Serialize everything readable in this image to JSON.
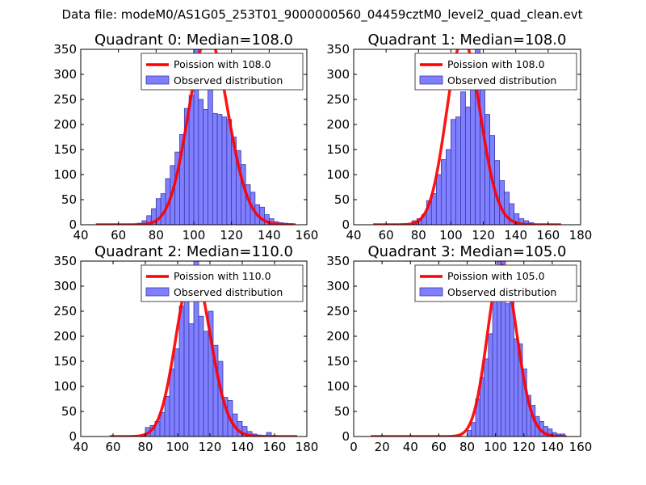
{
  "figure": {
    "suptitle": "Data file: modeM0/AS1G05_253T01_9000000560_04459cztM0_level2_quad_clean.evt",
    "colors": {
      "poisson": "#ff0000",
      "hist_fill": "#7f7fff",
      "hist_edge": "#3a3aa8",
      "axes": "#000000",
      "legend_edge": "#444444"
    }
  },
  "chart_data": [
    {
      "type": "bar",
      "title": "Quadrant 0: Median=108.0",
      "legend": [
        "Poission with 108.0",
        "Observed distribution"
      ],
      "legend_position": "top-right",
      "xlim": [
        40,
        160
      ],
      "ylim": [
        0,
        350
      ],
      "xticks": [
        40,
        60,
        80,
        100,
        120,
        140,
        160
      ],
      "yticks": [
        0,
        50,
        100,
        150,
        200,
        250,
        300,
        350
      ],
      "hist": {
        "start": 70,
        "bin_width": 2.5,
        "counts": [
          3,
          8,
          18,
          32,
          52,
          62,
          92,
          118,
          145,
          180,
          232,
          258,
          350,
          250,
          230,
          305,
          222,
          220,
          215,
          210,
          175,
          148,
          120,
          80,
          65,
          40,
          35,
          20,
          12,
          6,
          4,
          3,
          2
        ]
      },
      "poisson": {
        "lambda": 108,
        "x_range": [
          48,
          154
        ]
      }
    },
    {
      "type": "bar",
      "title": "Quadrant 1: Median=108.0",
      "legend": [
        "Poission with 108.0",
        "Observed distribution"
      ],
      "legend_position": "top-right",
      "xlim": [
        40,
        180
      ],
      "ylim": [
        0,
        350
      ],
      "xticks": [
        40,
        60,
        80,
        100,
        120,
        140,
        160,
        180
      ],
      "yticks": [
        0,
        50,
        100,
        150,
        200,
        250,
        300,
        350
      ],
      "hist": {
        "start": 76,
        "bin_width": 3,
        "counts": [
          8,
          12,
          20,
          48,
          62,
          100,
          130,
          150,
          210,
          215,
          265,
          235,
          340,
          350,
          295,
          220,
          178,
          128,
          88,
          65,
          42,
          22,
          12,
          8,
          4
        ]
      },
      "poisson": {
        "lambda": 108,
        "x_range": [
          52,
          168
        ]
      }
    },
    {
      "type": "bar",
      "title": "Quadrant 2: Median=110.0",
      "legend": [
        "Poission with 110.0",
        "Observed distribution"
      ],
      "legend_position": "top-right",
      "xlim": [
        40,
        180
      ],
      "ylim": [
        0,
        350
      ],
      "xticks": [
        40,
        60,
        80,
        100,
        120,
        140,
        160,
        180
      ],
      "yticks": [
        0,
        50,
        100,
        150,
        200,
        250,
        300,
        350
      ],
      "hist": {
        "start": 80,
        "bin_width": 3,
        "counts": [
          18,
          22,
          30,
          48,
          80,
          135,
          175,
          260,
          280,
          225,
          350,
          240,
          210,
          250,
          182,
          150,
          78,
          72,
          45,
          30,
          20,
          10,
          5,
          3,
          2,
          8,
          2
        ]
      },
      "poisson": {
        "lambda": 110,
        "x_range": [
          58,
          174
        ]
      }
    },
    {
      "type": "bar",
      "title": "Quadrant 3: Median=105.0",
      "legend": [
        "Poission with 105.0",
        "Observed distribution"
      ],
      "legend_position": "top-right",
      "xlim": [
        0,
        160
      ],
      "ylim": [
        0,
        350
      ],
      "xticks": [
        0,
        20,
        40,
        60,
        80,
        100,
        120,
        140,
        160
      ],
      "yticks": [
        0,
        50,
        100,
        150,
        200,
        250,
        300,
        350
      ],
      "hist": {
        "start": 80,
        "bin_width": 3,
        "counts": [
          12,
          28,
          75,
          118,
          155,
          205,
          280,
          350,
          360,
          265,
          300,
          195,
          185,
          135,
          82,
          62,
          40,
          30,
          20,
          15,
          8,
          5,
          5
        ]
      },
      "poisson": {
        "lambda": 105,
        "x_range": [
          12,
          150
        ]
      }
    }
  ]
}
